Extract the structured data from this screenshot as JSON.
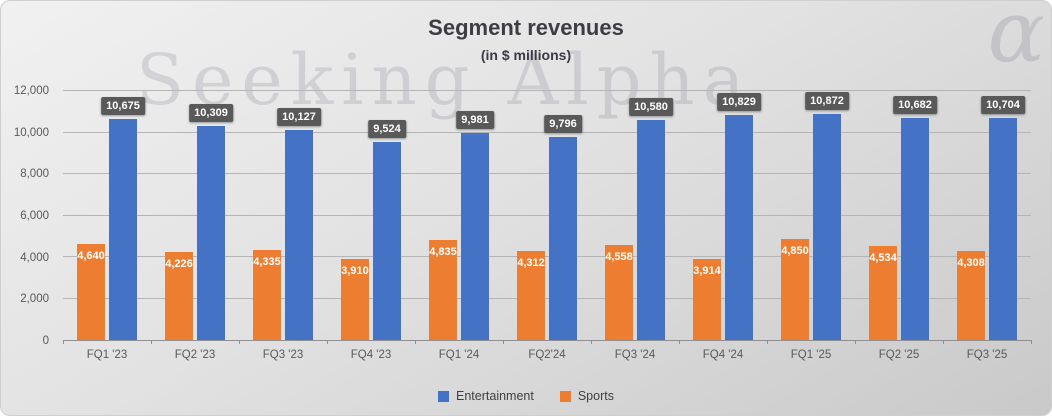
{
  "title": "Segment revenues",
  "subtitle": "(in $ millions)",
  "watermark": {
    "text": "Seeking Alpha",
    "symbol": "α"
  },
  "chart_data": {
    "type": "bar",
    "title": "Segment revenues",
    "subtitle": "(in $ millions)",
    "categories": [
      "FQ1 '23",
      "FQ2 '23",
      "FQ3 '23",
      "FQ4 '23",
      "FQ1 '24",
      "FQ2'24",
      "FQ3 '24",
      "FQ4 '24",
      "FQ1 '25",
      "FQ2 '25",
      "FQ3 '25"
    ],
    "series": [
      {
        "name": "Sports",
        "color": "#ED7D31",
        "label_style": "inside",
        "values": [
          4640,
          4226,
          4335,
          3910,
          4835,
          4312,
          4558,
          3914,
          4850,
          4534,
          4308
        ]
      },
      {
        "name": "Entertainment",
        "color": "#4472C4",
        "label_style": "boxed",
        "values": [
          10675,
          10309,
          10127,
          9524,
          9981,
          9796,
          10580,
          10829,
          10872,
          10682,
          10704
        ]
      }
    ],
    "legend_order": [
      "Entertainment",
      "Sports"
    ],
    "legend_position": "bottom",
    "grid": true,
    "ylim": [
      0,
      12000
    ],
    "ytick_step": 2000,
    "yticks": [
      "0",
      "2,000",
      "4,000",
      "6,000",
      "8,000",
      "10,000",
      "12,000"
    ]
  },
  "colors": {
    "entertainment": "#4472C4",
    "sports": "#ED7D31",
    "value_label_box": "#595959",
    "axis_text": "#595959"
  }
}
